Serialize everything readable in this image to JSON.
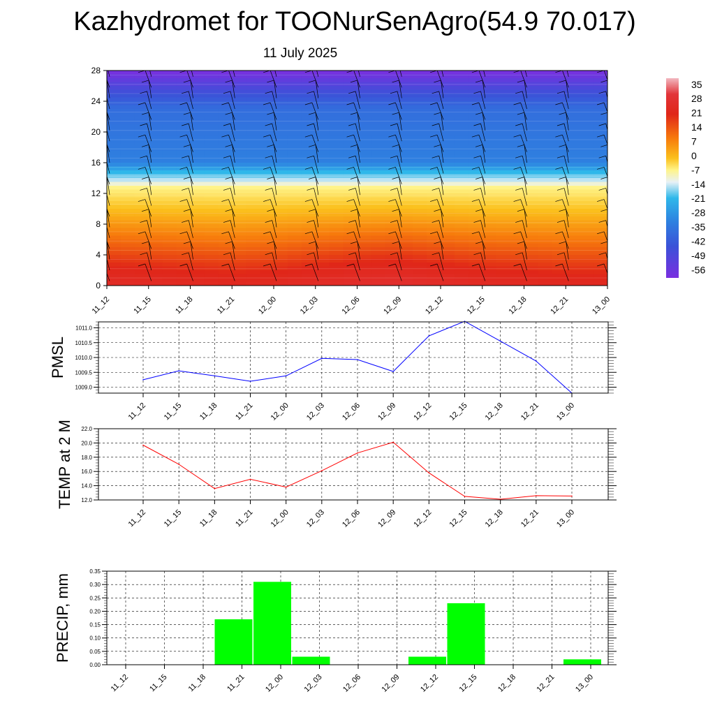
{
  "title": "Kazhydromet for TOONurSenAgro(54.9 70.017)",
  "subtitle": "11 July 2025",
  "time_labels": [
    "11_12",
    "11_15",
    "11_18",
    "11_21",
    "12_00",
    "12_03",
    "12_06",
    "12_09",
    "12_12",
    "12_15",
    "12_18",
    "12_21",
    "13_00"
  ],
  "chart_data": [
    {
      "type": "heatmap",
      "y_ticks": [
        0,
        4,
        8,
        12,
        16,
        20,
        24,
        28
      ],
      "ylim": [
        0,
        28
      ],
      "x": [
        "11_12",
        "11_15",
        "11_18",
        "11_21",
        "12_00",
        "12_03",
        "12_06",
        "12_09",
        "12_12",
        "12_15",
        "12_18",
        "12_21",
        "13_00"
      ],
      "colorbar_labels": [
        "35",
        "28",
        "21",
        "14",
        "7",
        "0",
        "-7",
        "-14",
        "-21",
        "-28",
        "-35",
        "-42",
        "-49",
        "-56"
      ],
      "colorbar_range": [
        -60,
        38
      ],
      "temperature_by_level_zero_line_km": 12.8,
      "surface_temp_by_time": [
        27,
        26,
        25,
        24,
        25,
        27,
        29,
        30,
        28,
        26,
        25,
        24,
        24
      ],
      "has_wind_barbs": true
    },
    {
      "type": "line",
      "ylabel": "PMSL",
      "x": [
        "11_12",
        "11_15",
        "11_18",
        "11_21",
        "12_00",
        "12_03",
        "12_06",
        "12_09",
        "12_12",
        "12_15",
        "12_18",
        "12_21",
        "13_00"
      ],
      "values": [
        1009.25,
        1009.55,
        1009.38,
        1009.2,
        1009.38,
        1009.97,
        1009.93,
        1009.53,
        1010.73,
        1011.22,
        1010.55,
        1009.88,
        1008.8
      ],
      "y_ticks": [
        "1009.0",
        "1009.5",
        "1010.0",
        "1010.5",
        "1011.0"
      ],
      "ylim": [
        1008.8,
        1011.2
      ],
      "color": "#0000ff",
      "grid": true
    },
    {
      "type": "line",
      "ylabel": "TEMP at 2 M",
      "x": [
        "11_12",
        "11_15",
        "11_18",
        "11_21",
        "12_00",
        "12_03",
        "12_06",
        "12_09",
        "12_12",
        "12_15",
        "12_18",
        "12_21",
        "13_00"
      ],
      "values": [
        19.7,
        17.0,
        13.6,
        14.9,
        13.8,
        16.1,
        18.6,
        20.1,
        15.8,
        12.5,
        12.1,
        12.6,
        12.55
      ],
      "y_ticks": [
        "12.0",
        "14.0",
        "16.0",
        "18.0",
        "20.0",
        "22.0"
      ],
      "ylim": [
        12,
        22
      ],
      "color": "#ff0000",
      "grid": true
    },
    {
      "type": "bar",
      "ylabel": "PRECIP, mm",
      "categories": [
        "11_12",
        "11_15",
        "11_18",
        "11_21",
        "12_00",
        "12_03",
        "12_06",
        "12_09",
        "12_12",
        "12_15",
        "12_18",
        "12_21",
        "13_00"
      ],
      "values": [
        0,
        0,
        0,
        0.17,
        0.31,
        0.03,
        0,
        0,
        0.03,
        0.23,
        0,
        0,
        0.02
      ],
      "y_ticks": [
        "0.00",
        "0.05",
        "0.10",
        "0.15",
        "0.20",
        "0.25",
        "0.30",
        "0.35"
      ],
      "ylim": [
        0,
        0.35
      ],
      "color": "#00ff00",
      "grid": true
    }
  ]
}
